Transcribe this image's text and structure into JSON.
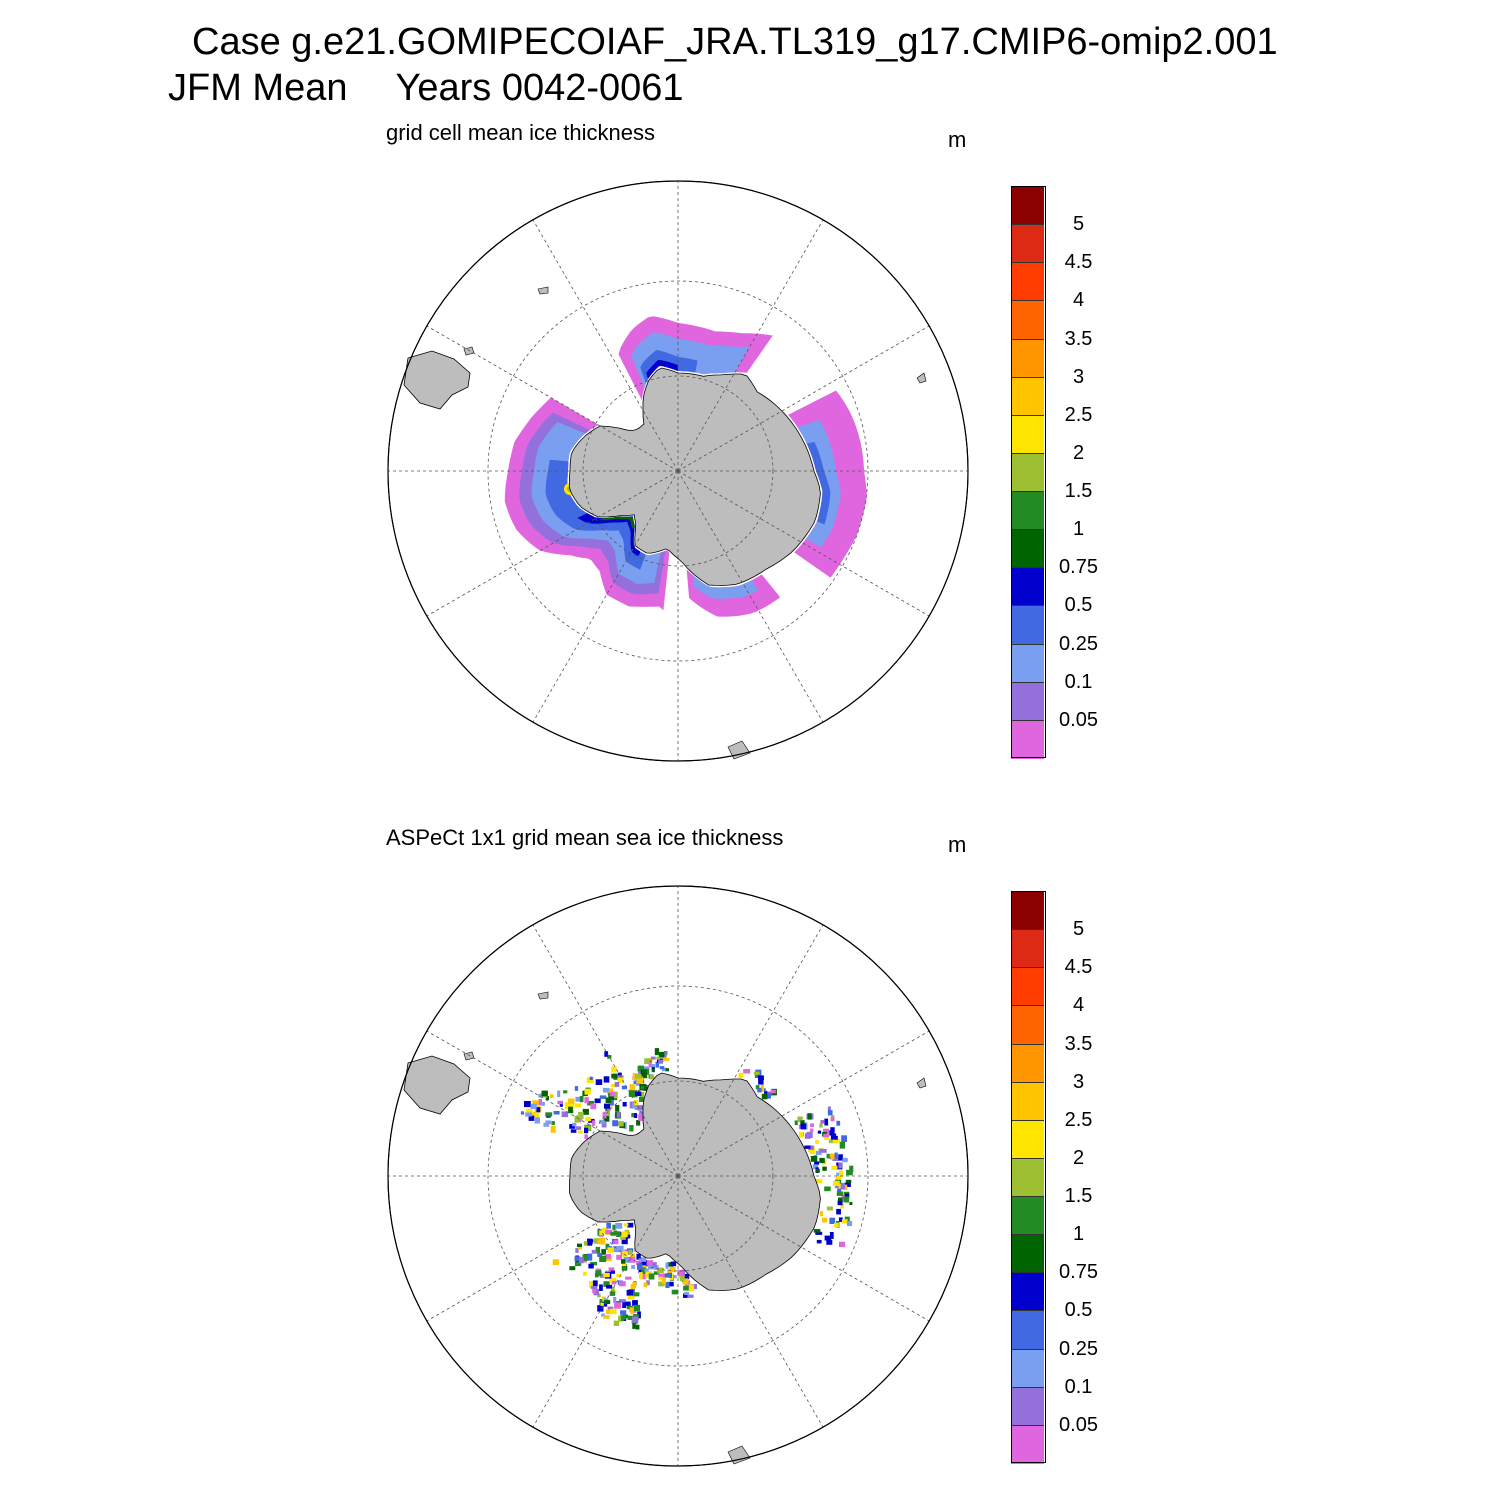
{
  "figure": {
    "title_case": "Case g.e21.GOMIPECOIAF_JRA.TL319_g17.CMIP6-omip2.001",
    "title_season": "JFM Mean",
    "title_years": "Years 0042-0061"
  },
  "colors": {
    "land": "#bdbdbd",
    "ocean": "#ffffff",
    "grid": "#555555"
  },
  "colorbar": {
    "levels": [
      "5",
      "4.5",
      "4",
      "3.5",
      "3",
      "2.5",
      "2",
      "1.5",
      "1",
      "0.75",
      "0.5",
      "0.25",
      "0.1",
      "0.05"
    ],
    "colors": [
      "#8b0000",
      "#dd2a14",
      "#ff3c00",
      "#ff6400",
      "#ff9600",
      "#ffc400",
      "#ffe400",
      "#9cc032",
      "#228b22",
      "#006400",
      "#0000cd",
      "#4169e1",
      "#7b9ff0",
      "#9370db",
      "#e066e0"
    ]
  },
  "panels": [
    {
      "id": "model",
      "title": "grid cell mean ice thickness",
      "units": "m",
      "projection": "south-polar-stereographic",
      "data_style": "continuous-bands"
    },
    {
      "id": "obs",
      "title": "ASPeCt 1x1 grid mean sea ice thickness",
      "units": "m",
      "projection": "south-polar-stereographic",
      "data_style": "sparse-ship-tracks"
    }
  ]
}
